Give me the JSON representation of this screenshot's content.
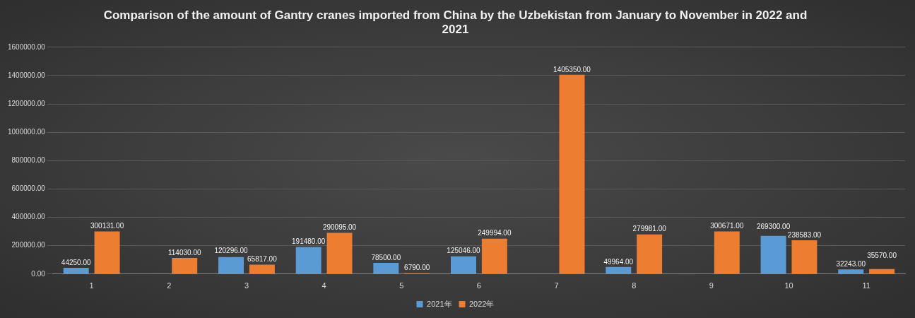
{
  "chart_data": {
    "type": "bar",
    "title": "Comparison of the amount of Gantry cranes imported from China by the Uzbekistan from January to November in 2022 and 2021",
    "categories": [
      "1",
      "2",
      "3",
      "4",
      "5",
      "6",
      "7",
      "8",
      "9",
      "10",
      "11"
    ],
    "series": [
      {
        "name": "2021年",
        "color": "#5b9bd5",
        "values": [
          44250,
          null,
          120296,
          191480,
          78500,
          125046,
          null,
          49964,
          null,
          269300,
          32243
        ],
        "value_labels": [
          "44250.00",
          null,
          "120296.00",
          "191480.00",
          "78500.00",
          "125046.00",
          null,
          "49964.00",
          null,
          "269300.00",
          "32243.00"
        ]
      },
      {
        "name": "2022年",
        "color": "#ed7d31",
        "values": [
          300131,
          114030,
          65817,
          290095,
          6790,
          249994,
          1405350,
          279981,
          300671,
          238583,
          35570
        ],
        "value_labels": [
          "300131.00",
          "114030.00",
          "65817.00",
          "290095.00",
          "6790.00",
          "249994.00",
          "1405350.00",
          "279981.00",
          "300671.00",
          "238583.00",
          "35570.00"
        ]
      }
    ],
    "ylim": [
      0,
      1600000
    ],
    "yticks": [
      {
        "value": 0,
        "label": "0.00"
      },
      {
        "value": 200000,
        "label": "200000.00"
      },
      {
        "value": 400000,
        "label": "400000.00"
      },
      {
        "value": 600000,
        "label": "600000.00"
      },
      {
        "value": 800000,
        "label": "800000.00"
      },
      {
        "value": 1000000,
        "label": "1000000.00"
      },
      {
        "value": 1200000,
        "label": "1200000.00"
      },
      {
        "value": 1400000,
        "label": "1400000.00"
      },
      {
        "value": 1600000,
        "label": "1600000.00"
      }
    ],
    "grid": true,
    "legend": "bottom",
    "data_labels": true
  }
}
